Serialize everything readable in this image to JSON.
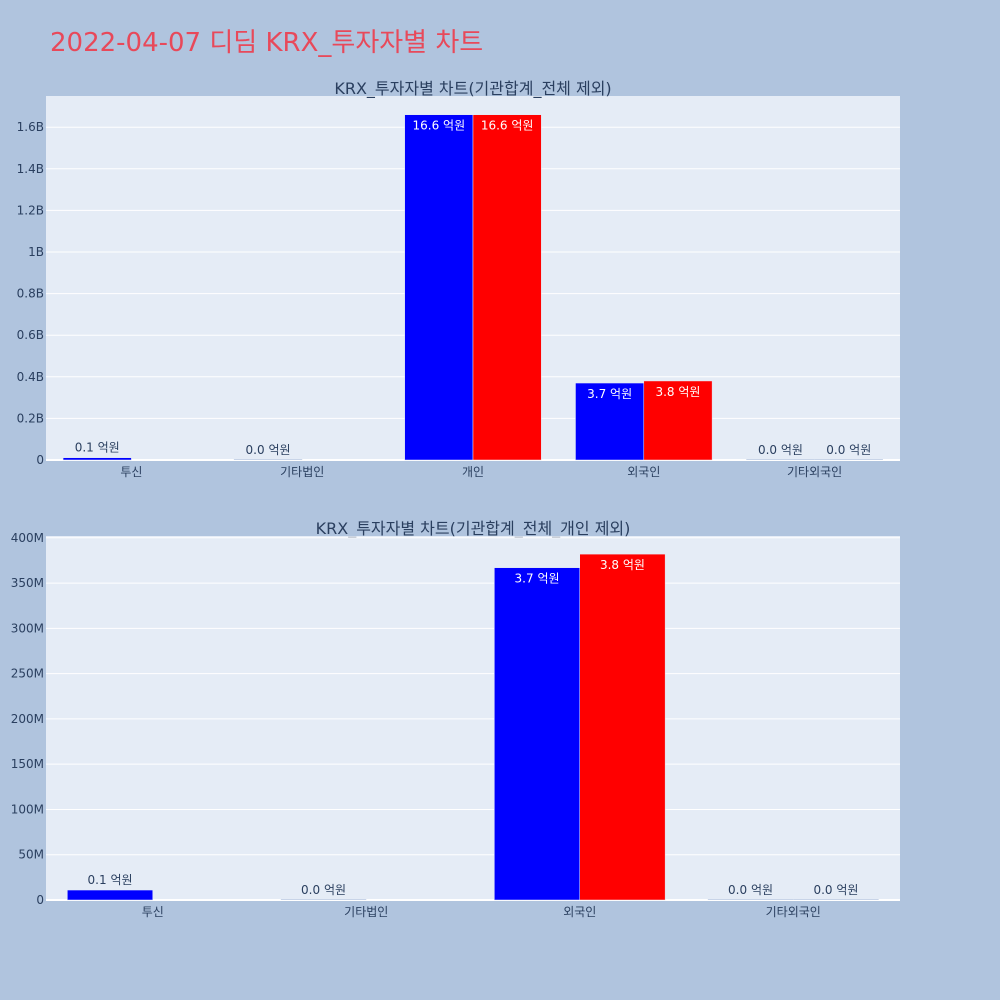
{
  "page": {
    "title": "2022-04-07 디딤 KRX_투자자별 차트"
  },
  "chart_data": [
    {
      "type": "bar",
      "title": "KRX_투자자별 차트(기관합계_전체 제외)",
      "categories": [
        "투신",
        "기타법인",
        "개인",
        "외국인",
        "기타외국인"
      ],
      "series": [
        {
          "color": "#0000ff",
          "values": [
            11000000,
            0,
            1660000000,
            370000000,
            0
          ],
          "labels": [
            "0.1 억원",
            "0.0 억원",
            "16.6 억원",
            "3.7 억원",
            "0.0 억원"
          ]
        },
        {
          "color": "#ff0000",
          "values": [
            0,
            0,
            1660000000,
            380000000,
            0
          ],
          "labels": [
            "",
            "",
            "16.6 억원",
            "3.8 억원",
            "0.0 억원"
          ]
        }
      ],
      "yticks": [
        0,
        200000000,
        400000000,
        600000000,
        800000000,
        1000000000,
        1200000000,
        1400000000,
        1600000000
      ],
      "ytick_labels": [
        "0",
        "0.2B",
        "0.4B",
        "0.6B",
        "0.8B",
        "1B",
        "1.2B",
        "1.4B",
        "1.6B"
      ],
      "ylim": [
        0,
        1750000000
      ],
      "grid": true,
      "xlabel": "",
      "ylabel": ""
    },
    {
      "type": "bar",
      "title": "KRX_투자자별 차트(기관합계_전체_개인 제외)",
      "categories": [
        "투신",
        "기타법인",
        "외국인",
        "기타외국인"
      ],
      "series": [
        {
          "color": "#0000ff",
          "values": [
            11000000,
            0,
            367000000,
            0
          ],
          "labels": [
            "0.1 억원",
            "0.0 억원",
            "3.7 억원",
            "0.0 억원"
          ]
        },
        {
          "color": "#ff0000",
          "values": [
            0,
            0,
            382000000,
            0
          ],
          "labels": [
            "",
            "",
            "3.8 억원",
            "0.0 억원"
          ]
        }
      ],
      "yticks": [
        0,
        50000000,
        100000000,
        150000000,
        200000000,
        250000000,
        300000000,
        350000000,
        400000000
      ],
      "ytick_labels": [
        "0",
        "50M",
        "100M",
        "150M",
        "200M",
        "250M",
        "300M",
        "350M",
        "400M"
      ],
      "ylim": [
        0,
        402000000
      ],
      "grid": true,
      "xlabel": "",
      "ylabel": ""
    }
  ]
}
